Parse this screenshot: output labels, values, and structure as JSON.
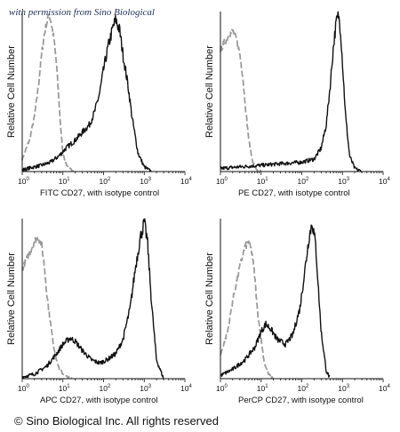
{
  "watermark": "with permission from Sino Biological",
  "copyright": "© Sino Biological Inc. All rights reserved",
  "colors": {
    "isotype": "#9a9a9a",
    "sample": "#111111",
    "axis": "#111111"
  },
  "chart_data": [
    {
      "type": "line",
      "title": "",
      "xlabel": "FITC  CD27,  with isotype control",
      "ylabel": "Relative Cell Number",
      "x_scale": "log",
      "xlim": [
        1,
        10000
      ],
      "xticks": [
        "10",
        "10",
        "10",
        "10",
        "10"
      ],
      "xtick_exponents": [
        "0",
        "1",
        "2",
        "3",
        "4"
      ],
      "series": [
        {
          "name": "",
          "style": "isotype-dashed-gray",
          "x": [
            1,
            1.5,
            2,
            2.5,
            3,
            3.5,
            4,
            4.5,
            5,
            6,
            7,
            8,
            9,
            10,
            12,
            14,
            17,
            20
          ],
          "y": [
            0.08,
            0.2,
            0.35,
            0.55,
            0.75,
            0.88,
            0.95,
            1.0,
            0.97,
            0.85,
            0.68,
            0.45,
            0.25,
            0.12,
            0.05,
            0.02,
            0.01,
            0
          ]
        },
        {
          "name": "",
          "style": "sample-solid-black",
          "x": [
            1,
            2,
            3,
            5,
            8,
            12,
            20,
            30,
            45,
            60,
            80,
            100,
            130,
            170,
            200,
            250,
            300,
            400,
            500,
            700,
            1000,
            1500
          ],
          "y": [
            0.01,
            0.03,
            0.04,
            0.06,
            0.1,
            0.15,
            0.2,
            0.25,
            0.3,
            0.38,
            0.5,
            0.65,
            0.8,
            0.92,
            0.97,
            0.9,
            0.75,
            0.55,
            0.35,
            0.12,
            0.03,
            0
          ]
        }
      ]
    },
    {
      "type": "line",
      "title": "",
      "xlabel": "PE CD27, with isotype control",
      "ylabel": "Relative Cell Number",
      "x_scale": "log",
      "xlim": [
        1,
        10000
      ],
      "xticks": [
        "10",
        "10",
        "10",
        "10",
        "10"
      ],
      "xtick_exponents": [
        "0",
        "1",
        "2",
        "3",
        "4"
      ],
      "series": [
        {
          "name": "",
          "style": "isotype-dashed-gray",
          "x": [
            1,
            1.5,
            2,
            2.5,
            3,
            3.5,
            4,
            5,
            6,
            7,
            8,
            10
          ],
          "y": [
            0.78,
            0.86,
            0.9,
            0.84,
            0.75,
            0.62,
            0.45,
            0.2,
            0.08,
            0.03,
            0.01,
            0
          ]
        },
        {
          "name": "",
          "style": "sample-solid-black",
          "x": [
            1,
            3,
            10,
            30,
            100,
            200,
            300,
            400,
            500,
            600,
            700,
            800,
            900,
            1000,
            1200,
            1500,
            2000,
            3000
          ],
          "y": [
            0.02,
            0.03,
            0.04,
            0.05,
            0.06,
            0.08,
            0.15,
            0.3,
            0.55,
            0.8,
            0.95,
            1.0,
            0.9,
            0.7,
            0.35,
            0.1,
            0.02,
            0
          ]
        }
      ]
    },
    {
      "type": "line",
      "title": "",
      "xlabel": "APC CD27, with isotype control",
      "ylabel": "Relative Cell Number",
      "x_scale": "log",
      "xlim": [
        1,
        10000
      ],
      "xticks": [
        "10",
        "10",
        "10",
        "10",
        "10"
      ],
      "xtick_exponents": [
        "0",
        "1",
        "2",
        "3",
        "4"
      ],
      "series": [
        {
          "name": "",
          "style": "isotype-dashed-gray",
          "x": [
            1,
            1.5,
            2,
            2.5,
            3,
            3.5,
            4,
            5,
            6,
            7,
            8,
            10,
            13,
            17
          ],
          "y": [
            0.7,
            0.8,
            0.88,
            0.9,
            0.86,
            0.72,
            0.55,
            0.35,
            0.2,
            0.12,
            0.07,
            0.03,
            0.01,
            0
          ]
        },
        {
          "name": "",
          "style": "sample-solid-black",
          "x": [
            1,
            2,
            4,
            7,
            10,
            15,
            20,
            30,
            50,
            80,
            120,
            200,
            300,
            450,
            600,
            800,
            1000,
            1200,
            1500,
            2000,
            3000
          ],
          "y": [
            0.01,
            0.03,
            0.08,
            0.16,
            0.22,
            0.26,
            0.24,
            0.18,
            0.12,
            0.1,
            0.12,
            0.16,
            0.25,
            0.45,
            0.7,
            0.9,
            1.0,
            0.88,
            0.5,
            0.12,
            0
          ]
        }
      ]
    },
    {
      "type": "line",
      "title": "",
      "xlabel": "PerCP CD27, with isotype control",
      "ylabel": "Relative Cell Number",
      "x_scale": "log",
      "xlim": [
        1,
        10000
      ],
      "xticks": [
        "10",
        "10",
        "10",
        "10",
        "10"
      ],
      "xtick_exponents": [
        "0",
        "1",
        "2",
        "3",
        "4"
      ],
      "series": [
        {
          "name": "",
          "style": "isotype-dashed-gray",
          "x": [
            1,
            1.5,
            2,
            3,
            4,
            5,
            6,
            7,
            8,
            10,
            12,
            15,
            20
          ],
          "y": [
            0.15,
            0.3,
            0.5,
            0.72,
            0.84,
            0.88,
            0.8,
            0.65,
            0.45,
            0.25,
            0.1,
            0.03,
            0
          ]
        },
        {
          "name": "",
          "style": "sample-solid-black",
          "x": [
            1,
            2,
            4,
            7,
            10,
            13,
            17,
            25,
            40,
            60,
            90,
            120,
            150,
            180,
            220,
            260,
            300,
            400,
            500
          ],
          "y": [
            0.02,
            0.06,
            0.12,
            0.2,
            0.3,
            0.35,
            0.32,
            0.25,
            0.22,
            0.28,
            0.45,
            0.7,
            0.9,
            1.0,
            0.85,
            0.55,
            0.3,
            0.05,
            0
          ]
        }
      ]
    }
  ]
}
